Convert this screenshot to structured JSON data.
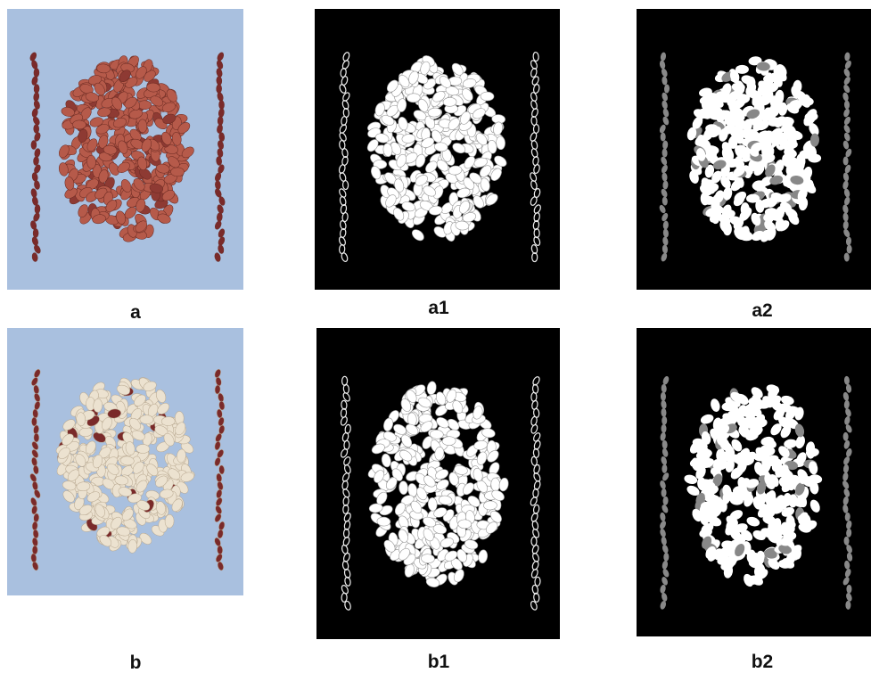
{
  "panels": [
    {
      "label": "a"
    },
    {
      "label": "a1"
    },
    {
      "label": "a2"
    },
    {
      "label": "b"
    },
    {
      "label": "b1"
    },
    {
      "label": "b2"
    }
  ]
}
